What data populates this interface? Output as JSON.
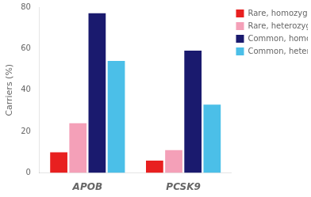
{
  "chart_data": {
    "type": "bar",
    "categories": [
      "APOB",
      "PCSK9"
    ],
    "series": [
      {
        "name": "Rare, homozygous",
        "color": "#e82020",
        "values": [
          10,
          6
        ]
      },
      {
        "name": "Rare, heterozygous",
        "color": "#f4a0b8",
        "values": [
          24,
          11
        ]
      },
      {
        "name": "Common, homozygous",
        "color": "#1a1a6e",
        "values": [
          77,
          59
        ]
      },
      {
        "name": "Common, heterozygous",
        "color": "#4bbfe8",
        "values": [
          54,
          33
        ]
      }
    ],
    "ylabel": "Carriers (%)",
    "ylim": [
      0,
      80
    ],
    "yticks": [
      0,
      20,
      40,
      60,
      80
    ],
    "grid": false,
    "legend": "upper right"
  }
}
